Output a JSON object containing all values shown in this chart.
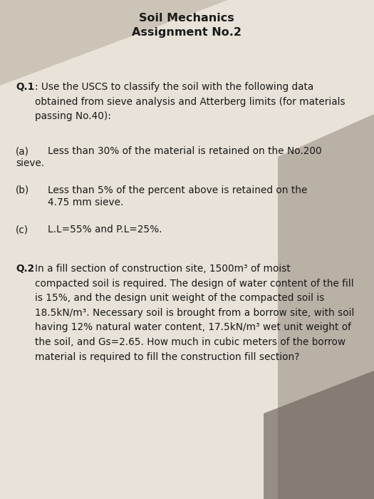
{
  "title_line1": "Soil Mechanics",
  "title_line2": "Assignment No.2",
  "bg_top_left": "#c8bfb0",
  "bg_paper": "#e8e2d8",
  "shadow_right_color": "#8a8078",
  "shadow_bottom_color": "#6a6058",
  "title_fontsize": 11.5,
  "body_fontsize": 9.8,
  "q1_label": "Q.1",
  "q1_intro": ": Use the USCS to classify the soil with the following data\nobtained from sieve analysis and Atterberg limits (for materials\npassing No.40):",
  "q1a_label": "(a)",
  "q1a_line1": "Less than 30% of the material is retained on the No.200",
  "q1a_line2": "sieve.",
  "q1b_label": "(b)",
  "q1b_line1": "Less than 5% of the percent above is retained on the",
  "q1b_line2": "4.75 mm sieve.",
  "q1c_label": "(c)",
  "q1c_text": "L.L=55% and P.L=25%.",
  "q2_label": "Q.2",
  "q2_text": "In a fill section of construction site, 1500m³ of moist\ncompacted soil is required. The design of water content of the fill\nis 15%, and the design unit weight of the compacted soil is\n18.5kN/m³. Necessary soil is brought from a borrow site, with soil\nhaving 12% natural water content, 17.5kN/m³ wet unit weight of\nthe soil, and Gs=2.65. How much in cubic meters of the borrow\nmaterial is required to fill the construction fill section?"
}
